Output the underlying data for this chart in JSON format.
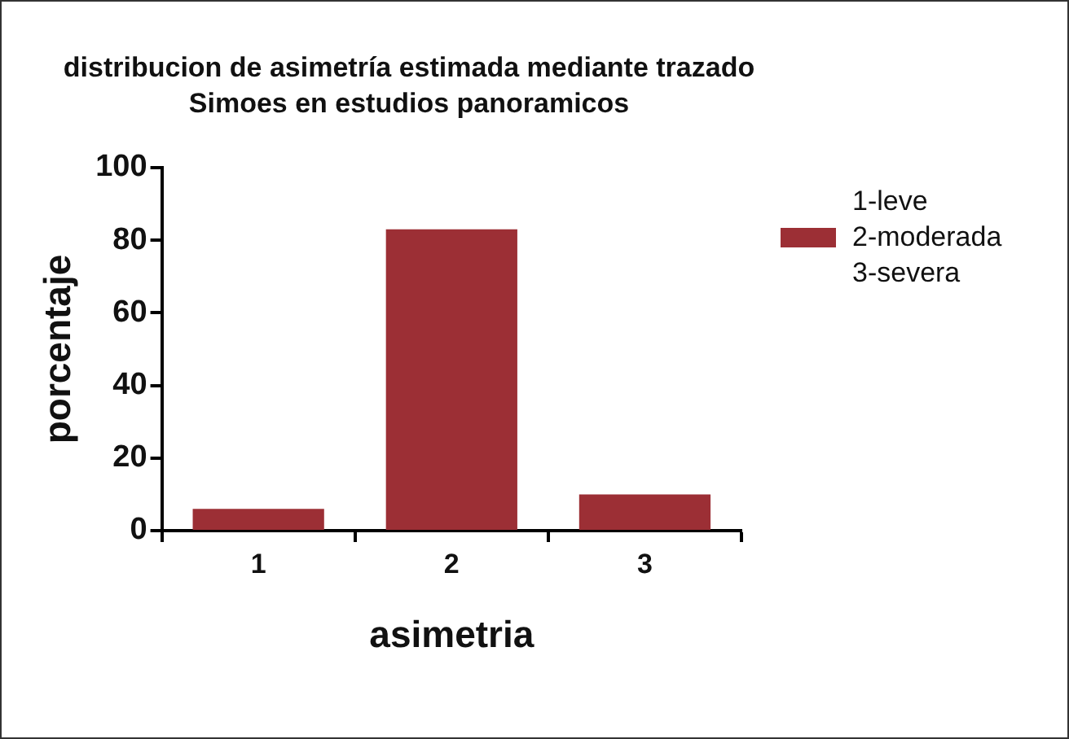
{
  "chart_data": {
    "type": "bar",
    "title": "distribucion de asimetría estimada mediante trazado Simoes en estudios panoramicos",
    "xlabel": "asimetria",
    "ylabel": "porcentaje",
    "categories": [
      "1",
      "2",
      "3"
    ],
    "series": [
      {
        "name": "2-moderada",
        "color": "#9c2f35",
        "values": [
          6,
          83,
          10
        ]
      }
    ],
    "ylim": [
      0,
      100
    ],
    "yticks": [
      0,
      20,
      40,
      60,
      80,
      100
    ],
    "grid": false,
    "legend": "right",
    "annotations": [
      "1-leve",
      "3-severa"
    ]
  }
}
